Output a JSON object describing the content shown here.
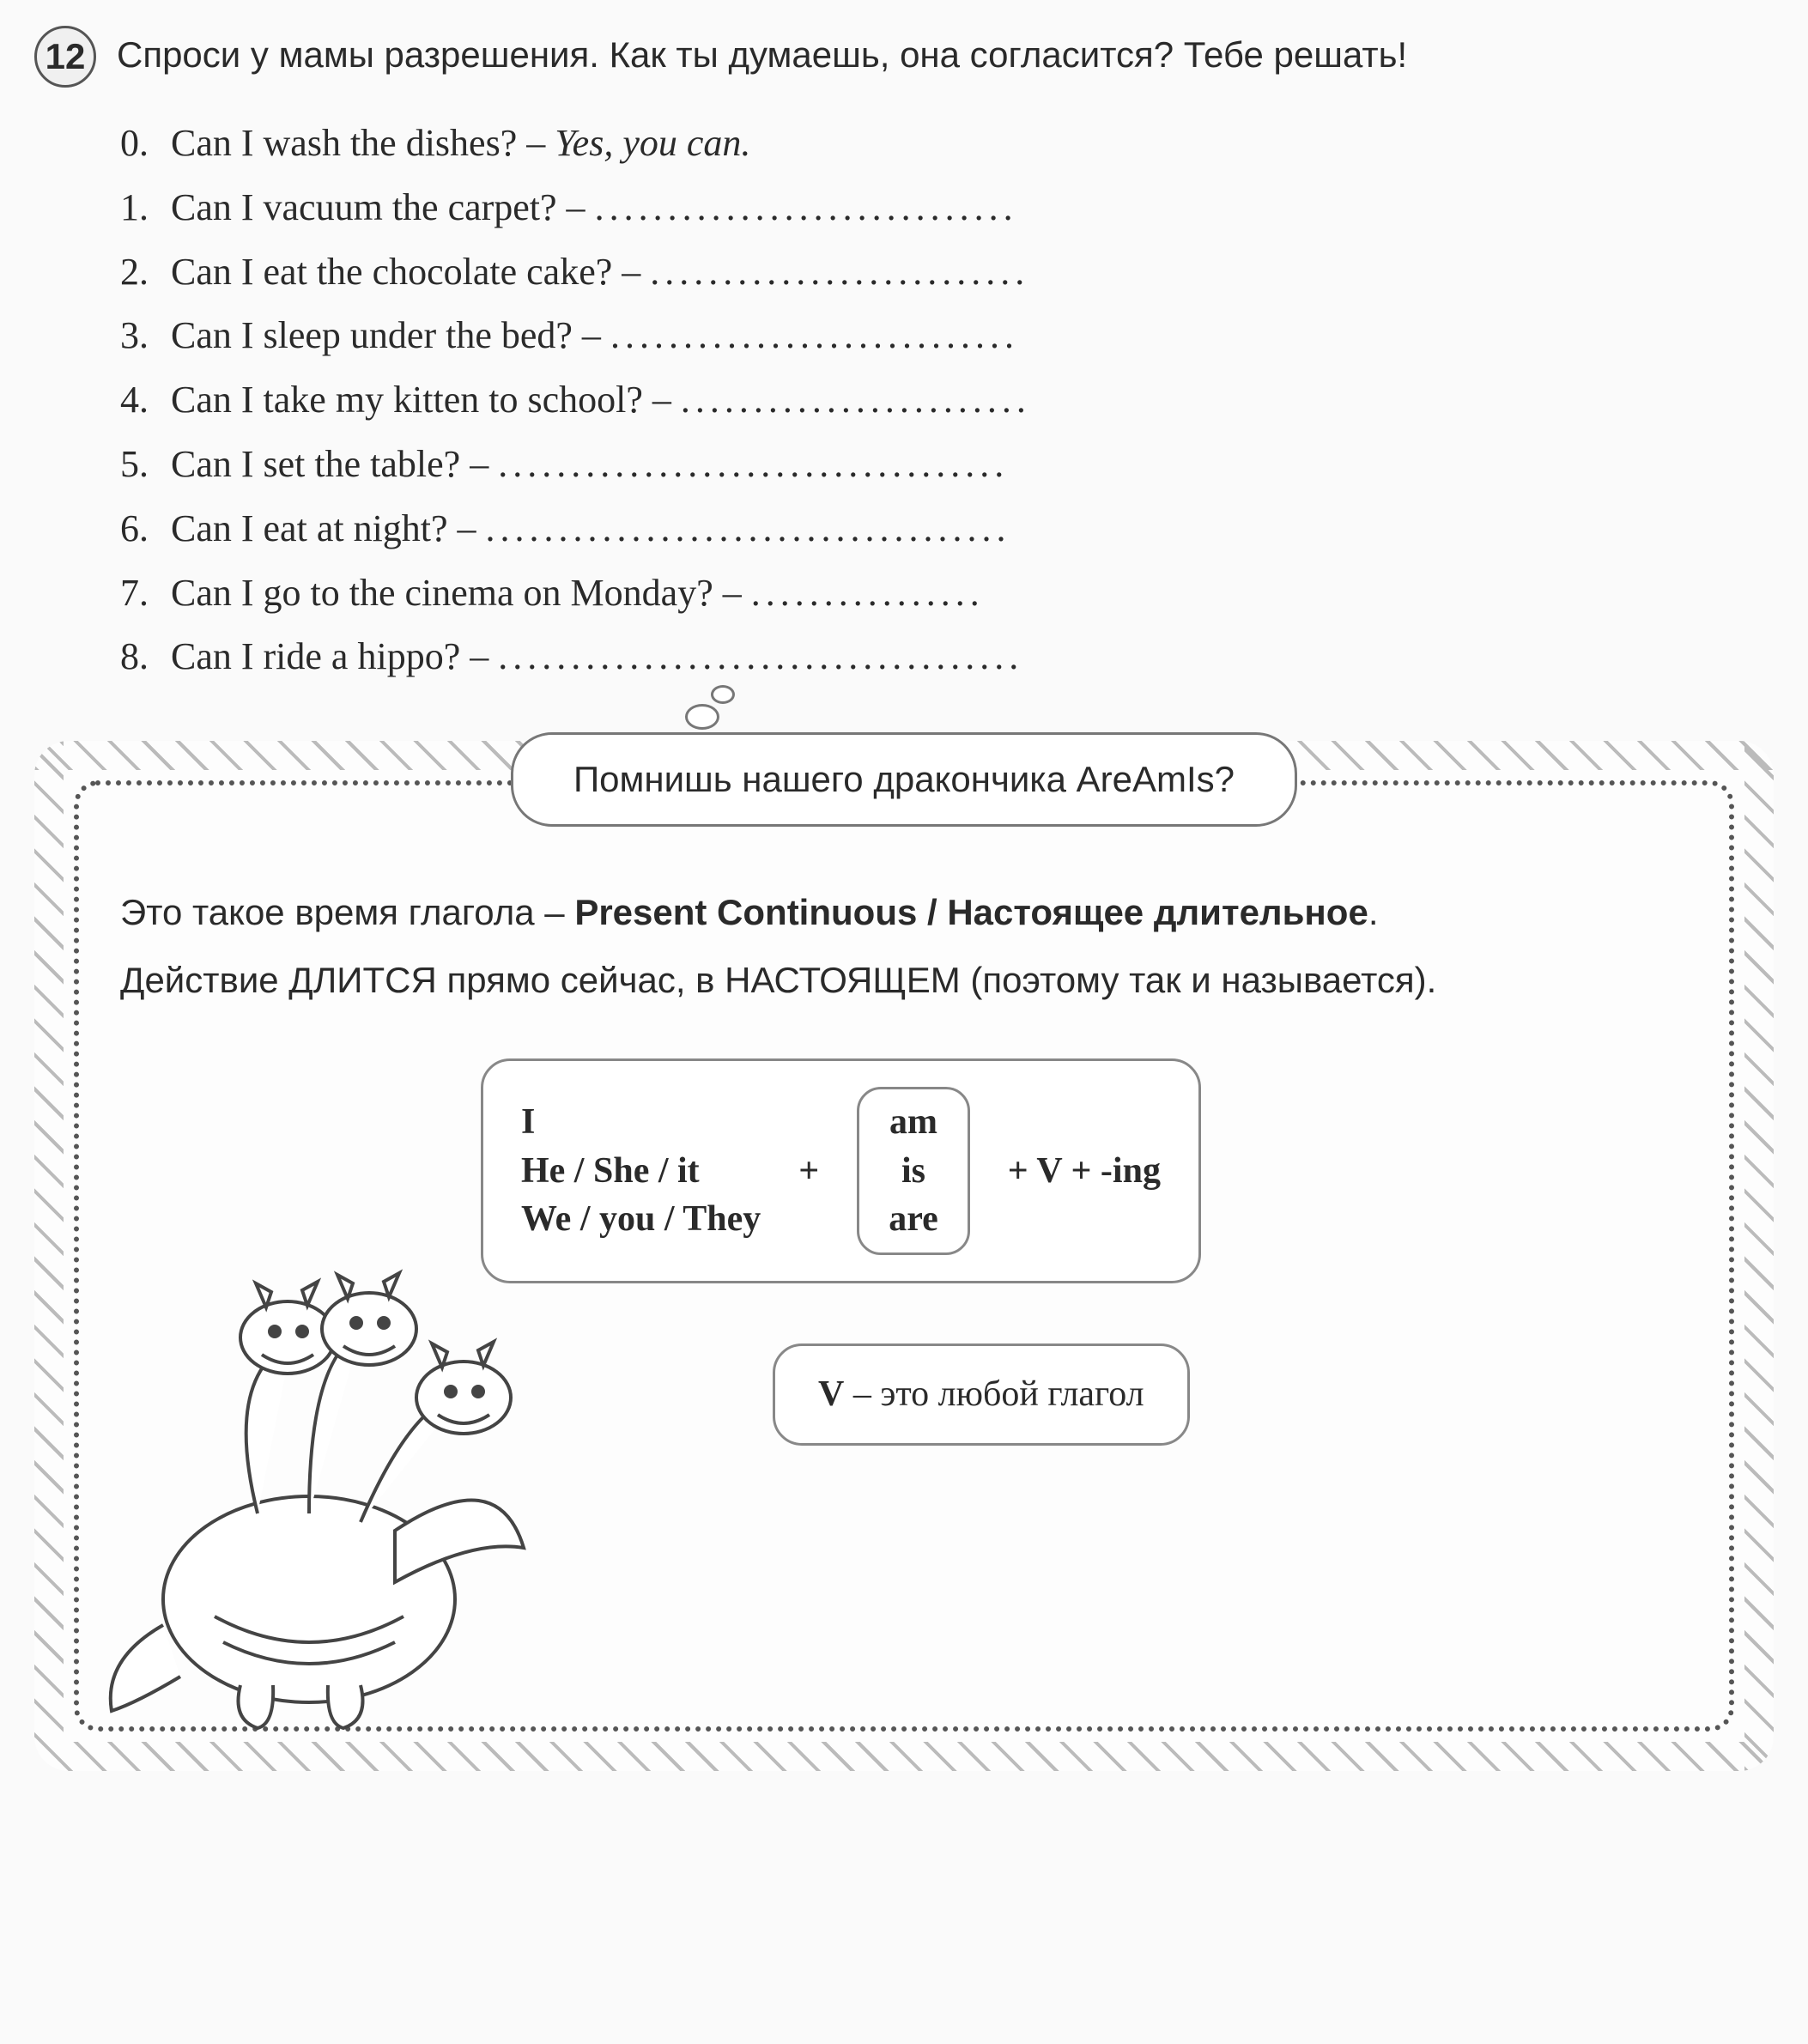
{
  "exercise": {
    "number": "12",
    "instruction": "Спроси у мамы разрешения. Как ты думаешь, она согласится? Тебе решать!",
    "items": [
      {
        "n": "0.",
        "q": "Can I wash the dishes? –",
        "a": "Yes, you can.",
        "given": true
      },
      {
        "n": "1.",
        "q": "Can I vacuum the carpet? –",
        "a": ".............................",
        "given": false
      },
      {
        "n": "2.",
        "q": "Can I eat the chocolate cake? –",
        "a": "..........................",
        "given": false
      },
      {
        "n": "3.",
        "q": "Can I sleep under the bed? –",
        "a": "............................",
        "given": false
      },
      {
        "n": "4.",
        "q": "Can I take my kitten to school? –",
        "a": "........................",
        "given": false
      },
      {
        "n": "5.",
        "q": "Can I set the table? –",
        "a": "...................................",
        "given": false
      },
      {
        "n": "6.",
        "q": "Can I eat at night? –",
        "a": "....................................",
        "given": false
      },
      {
        "n": "7.",
        "q": "Can I go to the cinema on Monday? –",
        "a": "................",
        "given": false
      },
      {
        "n": "8.",
        "q": "Can I ride a hippo? –",
        "a": "....................................",
        "given": false
      }
    ]
  },
  "grammar": {
    "bubble": "Помнишь нашего дракончика AreAmIs?",
    "line1_a": "Это такое время глагола – ",
    "line1_b": "Present Continuous / Настоящее длительное",
    "line1_c": ".",
    "line2": "Действие ДЛИТСЯ прямо сейчас, в НАСТОЯЩЕМ (поэтому так и называется).",
    "formula": {
      "pronouns": [
        "I",
        "He / She / it",
        "We / you / They"
      ],
      "plus1": "+",
      "be": [
        "am",
        "is",
        "are"
      ],
      "plus2": "+ V + -ing"
    },
    "note_v": "V",
    "note_rest": " – это любой глагол"
  },
  "colors": {
    "text": "#2a2a2a",
    "border": "#777777",
    "hatch": "#bbbbbb",
    "dot_border": "#555555",
    "bg": "#fafafa"
  }
}
